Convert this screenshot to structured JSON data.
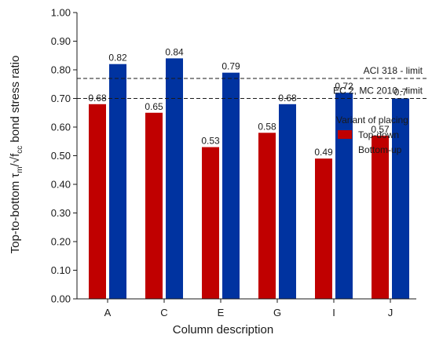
{
  "chart_data": {
    "type": "bar",
    "categories": [
      "A",
      "C",
      "E",
      "G",
      "I",
      "J"
    ],
    "series": [
      {
        "name": "Top-down",
        "values": [
          0.68,
          0.65,
          0.53,
          0.58,
          0.49,
          0.57
        ],
        "labels": [
          "0.68",
          "0.65",
          "0.53",
          "0.58",
          "0.49",
          "0.57"
        ],
        "color": "#c00000"
      },
      {
        "name": "Bottom-up",
        "values": [
          0.82,
          0.84,
          0.79,
          0.68,
          0.72,
          0.7
        ],
        "labels": [
          "0.82",
          "0.84",
          "0.79",
          "0.68",
          "0.72",
          "0.7"
        ],
        "color": "#0033a0"
      }
    ],
    "xlabel": "Column description",
    "ylabel_prefix": "Top-to-bottom τ",
    "ylabel_sub_m": "m",
    "ylabel_sqrt": "/√f",
    "ylabel_sub_cc": "cc",
    "ylabel_suffix": " bond stress ratio",
    "ylim": [
      0,
      1.0
    ],
    "yticks": [
      "0.00",
      "0.10",
      "0.20",
      "0.30",
      "0.40",
      "0.50",
      "0.60",
      "0.70",
      "0.80",
      "0.90",
      "1.00"
    ],
    "reference_lines": [
      {
        "value": 0.77,
        "label": "ACI 318 - limit"
      },
      {
        "value": 0.7,
        "label": "EC 2, MC 2010 - limit"
      }
    ],
    "legend": {
      "title": "Variant of placing",
      "placement": "right"
    },
    "grid": false
  }
}
